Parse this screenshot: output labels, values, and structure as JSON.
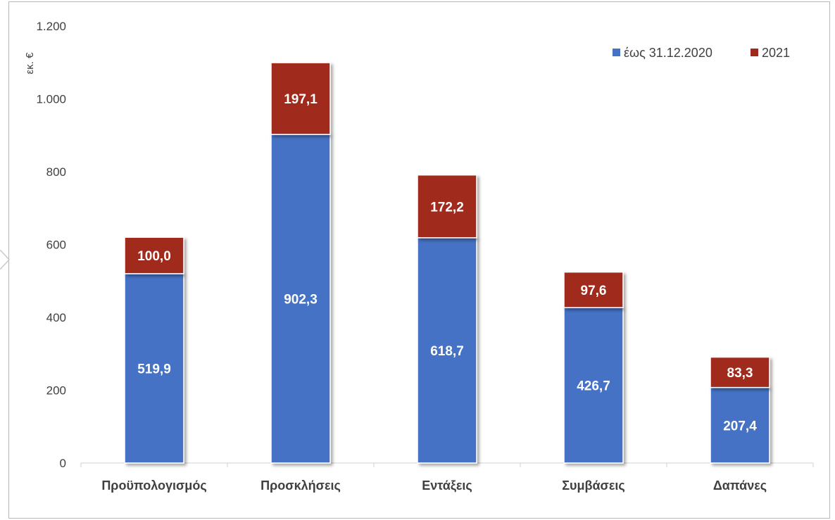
{
  "chart_data": {
    "type": "bar",
    "stacked": true,
    "categories": [
      "Προϋπολογισμός",
      "Προσκλήσεις",
      "Εντάξεις",
      "Συμβάσεις",
      "Δαπάνες"
    ],
    "series": [
      {
        "name": "έως 31.12.2020",
        "color": "#4472c4",
        "values": [
          519.9,
          902.3,
          618.7,
          426.7,
          207.4
        ],
        "labels": [
          "519,9",
          "902,3",
          "618,7",
          "426,7",
          "207,4"
        ]
      },
      {
        "name": "2021",
        "color": "#a0291f",
        "values": [
          100.0,
          197.1,
          172.2,
          97.6,
          83.3
        ],
        "labels": [
          "100,0",
          "197,1",
          "172,2",
          "97,6",
          "83,3"
        ]
      }
    ],
    "ylabel": "εκ. €",
    "ylim": [
      0,
      1200
    ],
    "yticks": [
      0,
      200,
      400,
      600,
      800,
      1000,
      1200
    ],
    "ytick_labels": [
      "0",
      "200",
      "400",
      "600",
      "800",
      "1.000",
      "1.200"
    ],
    "grid": false,
    "legend": "top-right"
  }
}
